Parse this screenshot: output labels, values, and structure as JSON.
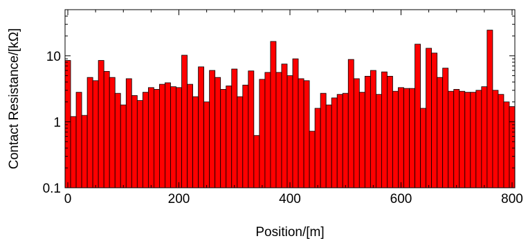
{
  "chart_data": {
    "type": "bar",
    "xlabel": "Position/[m]",
    "ylabel": "Contact Resistance/[kΩ]",
    "y_scale": "log",
    "xlim": [
      -5,
      805
    ],
    "ylim": [
      0.1,
      50
    ],
    "x_ticks": [
      {
        "value": 0,
        "label": "0"
      },
      {
        "value": 200,
        "label": "200"
      },
      {
        "value": 400,
        "label": "400"
      },
      {
        "value": 600,
        "label": "600"
      },
      {
        "value": 800,
        "label": "800"
      }
    ],
    "y_ticks": [
      {
        "value": 0.1,
        "label": "0.1"
      },
      {
        "value": 1,
        "label": "1"
      },
      {
        "value": 10,
        "label": "10"
      }
    ],
    "bar_width": 10,
    "bar_color": "#ff0000",
    "edge_color": "#000000",
    "grid": false,
    "series": [
      {
        "x": [
          0,
          10,
          20,
          30,
          40,
          50,
          60,
          70,
          80,
          90,
          100,
          110,
          120,
          130,
          140,
          150,
          160,
          170,
          180,
          190,
          200,
          210,
          220,
          230,
          240,
          250,
          260,
          270,
          280,
          290,
          300,
          310,
          320,
          330,
          340,
          350,
          360,
          370,
          380,
          390,
          400,
          410,
          420,
          430,
          440,
          450,
          460,
          470,
          480,
          490,
          500,
          510,
          520,
          530,
          540,
          550,
          560,
          570,
          580,
          590,
          600,
          610,
          620,
          630,
          640,
          650,
          660,
          670,
          680,
          690,
          700,
          710,
          720,
          730,
          740,
          750,
          760,
          770,
          780,
          790,
          800
        ],
        "values": [
          8.5,
          1.2,
          2.8,
          1.25,
          4.7,
          4.2,
          8.5,
          5.8,
          4.7,
          2.7,
          1.8,
          4.5,
          2.5,
          2.1,
          2.8,
          3.3,
          3.1,
          3.7,
          3.9,
          3.4,
          3.3,
          10.2,
          3.7,
          2.4,
          6.8,
          2.0,
          6.0,
          4.7,
          3.1,
          3.5,
          6.3,
          2.4,
          3.6,
          5.9,
          0.62,
          4.4,
          5.6,
          16.5,
          5.6,
          7.5,
          5.0,
          9.0,
          4.5,
          4.2,
          0.72,
          1.6,
          2.7,
          1.8,
          2.3,
          2.6,
          2.7,
          8.8,
          4.5,
          2.8,
          4.9,
          6.0,
          2.6,
          5.7,
          4.9,
          2.9,
          3.3,
          3.2,
          3.2,
          15.0,
          1.6,
          13.0,
          11.0,
          4.7,
          6.5,
          2.9,
          3.1,
          2.9,
          2.8,
          2.8,
          3.0,
          3.4,
          24.5,
          3.0,
          2.6,
          2.0,
          1.7
        ]
      }
    ]
  }
}
